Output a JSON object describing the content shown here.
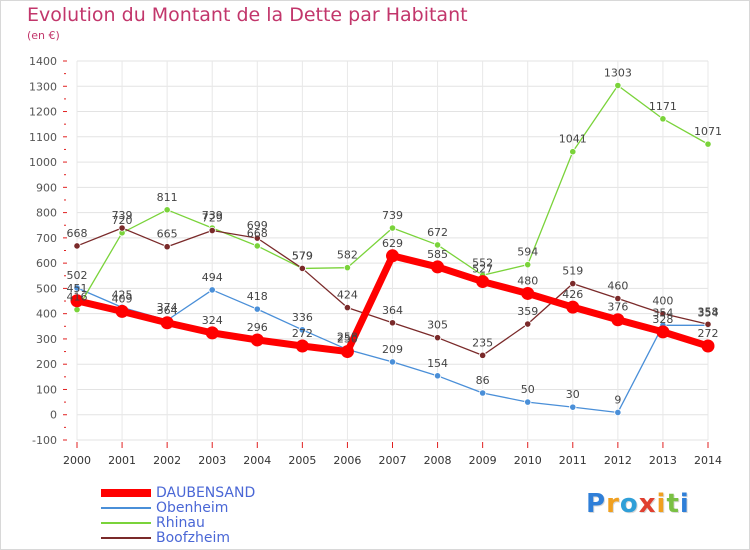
{
  "header": {
    "title": "Evolution du Montant de la Dette par Habitant",
    "subtitle": "(en €)"
  },
  "chart_data": {
    "type": "line",
    "title": "Evolution du Montant de la Dette par Habitant",
    "ylabel": "(en €)",
    "xlabel": "",
    "ylim": [
      -100,
      1400
    ],
    "ytick_step": 100,
    "x": [
      "2000",
      "2001",
      "2002",
      "2003",
      "2004",
      "2005",
      "2006",
      "2007",
      "2008",
      "2009",
      "2010",
      "2011",
      "2012",
      "2013",
      "2014"
    ],
    "series": [
      {
        "name": "DAUBENSAND",
        "color": "#ff0000",
        "values": [
          451,
          409,
          364,
          324,
          296,
          272,
          250,
          629,
          585,
          527,
          480,
          426,
          376,
          328,
          272
        ]
      },
      {
        "name": "Obenheim",
        "color": "#4a8fd8",
        "values": [
          502,
          425,
          374,
          494,
          418,
          336,
          258,
          209,
          154,
          86,
          50,
          30,
          9,
          354,
          354
        ]
      },
      {
        "name": "Rhinau",
        "color": "#7ad33a",
        "values": [
          416,
          720,
          811,
          739,
          668,
          579,
          582,
          739,
          672,
          552,
          594,
          1041,
          1303,
          1171,
          1071
        ]
      },
      {
        "name": "Boofzheim",
        "color": "#7a2a2a",
        "values": [
          668,
          739,
          665,
          729,
          699,
          579,
          424,
          364,
          305,
          235,
          359,
          519,
          460,
          400,
          358
        ]
      }
    ]
  },
  "legend": [
    {
      "label": "DAUBENSAND",
      "color": "#ff0000"
    },
    {
      "label": "Obenheim",
      "color": "#4a8fd8"
    },
    {
      "label": "Rhinau",
      "color": "#7ad33a"
    },
    {
      "label": "Boofzheim",
      "color": "#7a2a2a"
    }
  ],
  "logo": {
    "letters": [
      "P",
      "r",
      "o",
      "x",
      "i",
      "t",
      "i"
    ],
    "colors": [
      "#2f7fd8",
      "#f0a020",
      "#2f9fd8",
      "#e04030",
      "#f0a020",
      "#7ac043",
      "#2f7fd8"
    ]
  }
}
